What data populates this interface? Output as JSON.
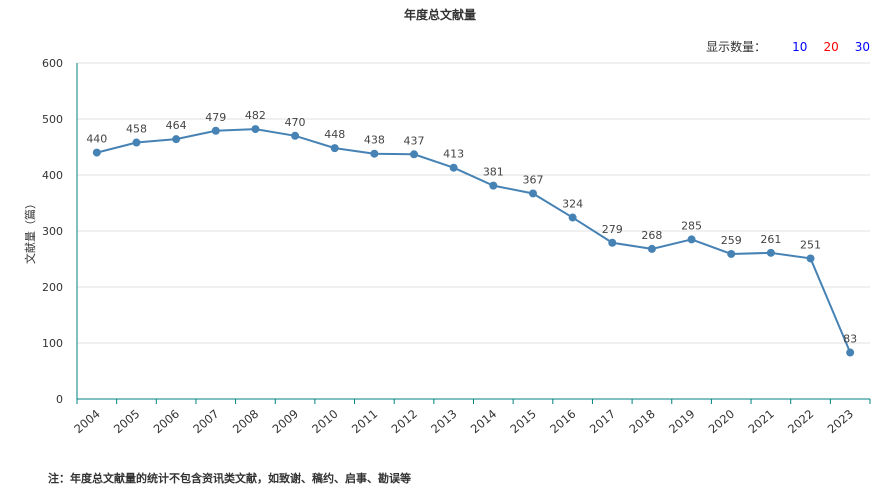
{
  "chart_data": {
    "type": "line",
    "title": "年度总文献量",
    "ylabel": "文献量（篇）",
    "xlabel": "",
    "x": [
      "2004",
      "2005",
      "2006",
      "2007",
      "2008",
      "2009",
      "2010",
      "2011",
      "2012",
      "2013",
      "2014",
      "2015",
      "2016",
      "2017",
      "2018",
      "2019",
      "2020",
      "2021",
      "2022",
      "2023"
    ],
    "series": [
      {
        "values": [
          440,
          458,
          464,
          479,
          482,
          470,
          448,
          438,
          437,
          413,
          381,
          367,
          324,
          279,
          268,
          285,
          259,
          261,
          251,
          83
        ]
      }
    ],
    "ylim": [
      0,
      600
    ],
    "yticks": [
      0,
      100,
      200,
      300,
      400,
      500,
      600
    ],
    "grid": true,
    "line_color": "#4682b4"
  },
  "display_count": {
    "label": "显示数量：",
    "options": [
      {
        "label": "10",
        "color": "#0000ff"
      },
      {
        "label": "20",
        "color": "#ff0000"
      },
      {
        "label": "30",
        "color": "#0000ff"
      }
    ]
  },
  "footnote": "注：年度总文献量的统计不包含资讯类文献，如致谢、稿约、启事、勘误等"
}
